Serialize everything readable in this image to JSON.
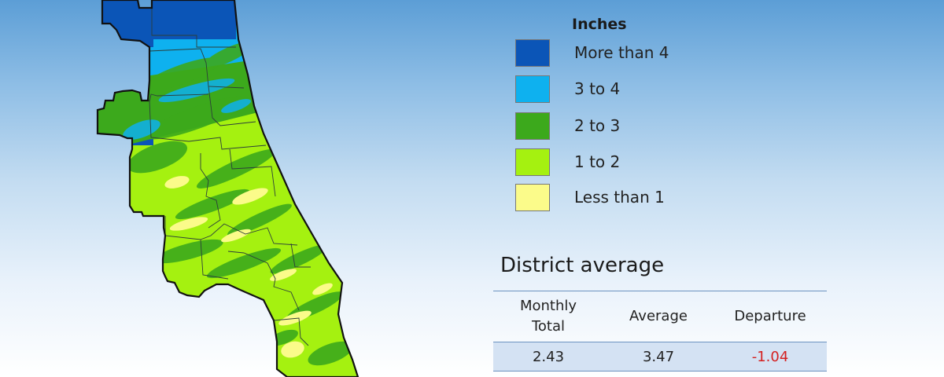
{
  "legend": {
    "title": "Inches",
    "items": [
      {
        "label": "More than 4",
        "color": "#0b55b7"
      },
      {
        "label": "3 to 4",
        "color": "#0eb1ef"
      },
      {
        "label": "2 to 3",
        "color": "#3ca91c"
      },
      {
        "label": "1 to 2",
        "color": "#a5f110"
      },
      {
        "label": "Less than 1",
        "color": "#fbfb8a"
      }
    ]
  },
  "district_average": {
    "title": "District average",
    "headers": [
      "Monthly\nTotal",
      "Average",
      "Departure"
    ],
    "values": [
      "2.43",
      "3.47",
      "-1.04"
    ],
    "departure_color": "#d42020"
  }
}
